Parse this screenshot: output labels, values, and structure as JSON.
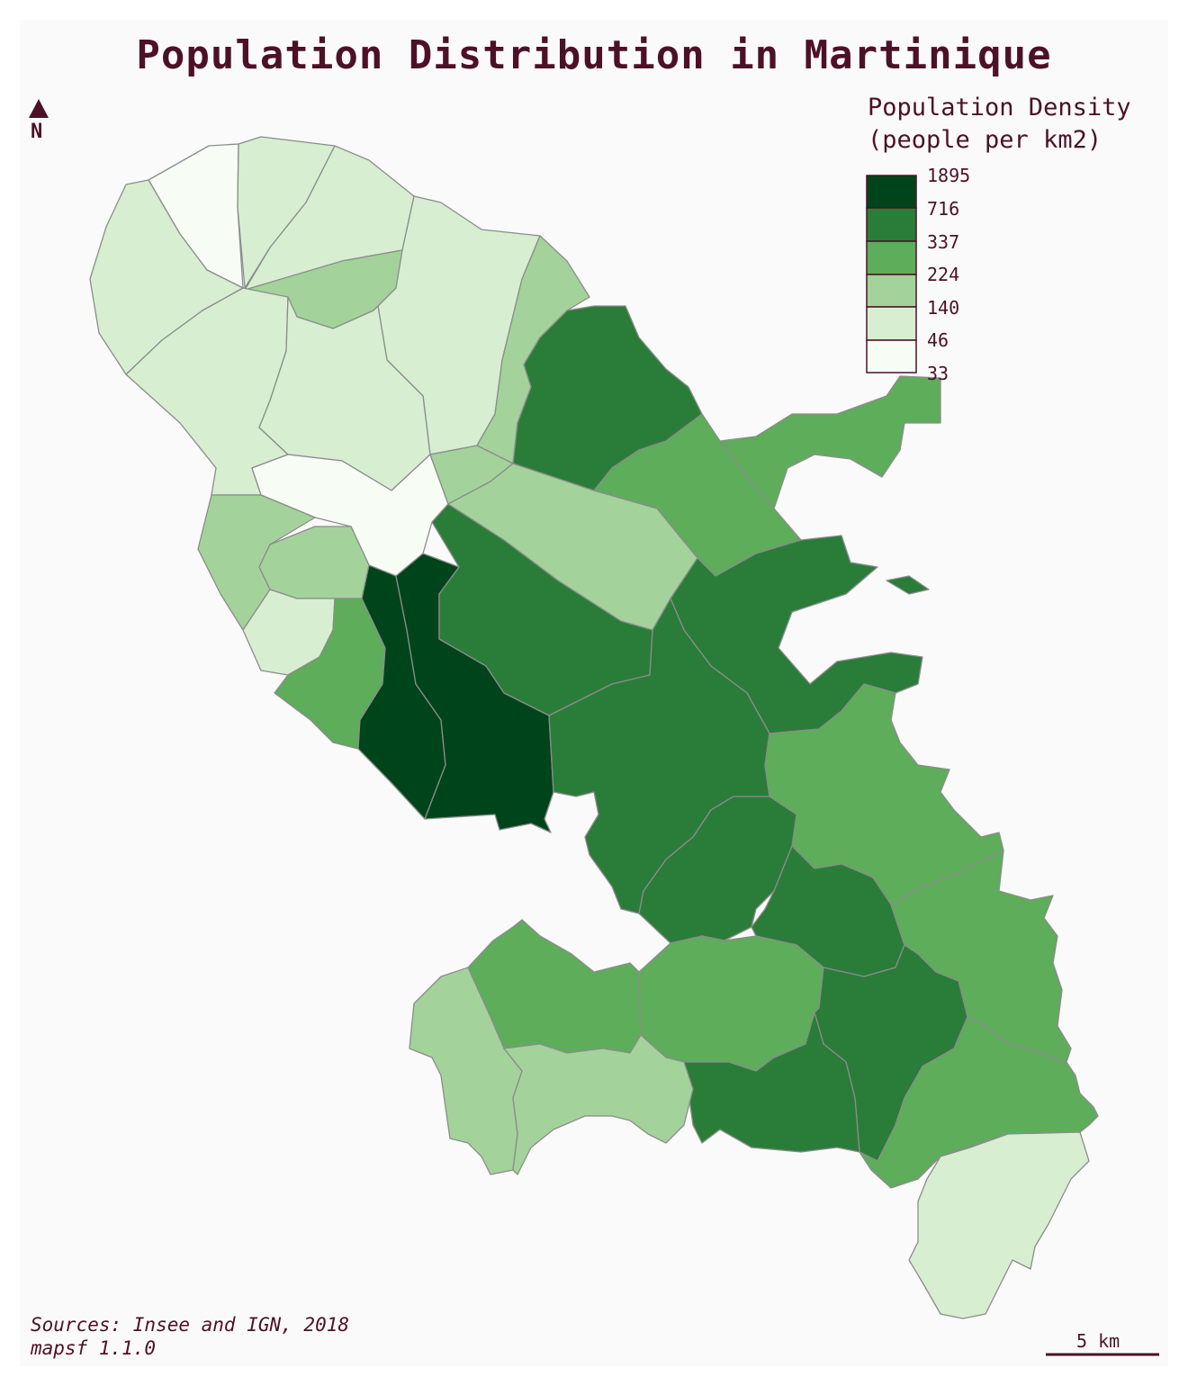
{
  "title": "Population Distribution in Martinique",
  "legend": {
    "title_line1": "Population Density",
    "title_line2": "(people per km2)",
    "breaks": [
      "1895",
      "716",
      "337",
      "224",
      "140",
      "46",
      "33"
    ],
    "colors": [
      "#00441b",
      "#2a7d39",
      "#5dad5a",
      "#a3d39a",
      "#d7eed1",
      "#f7fcf5"
    ]
  },
  "north_arrow": {
    "label": "N"
  },
  "credits": {
    "source": "Sources: Insee and IGN, 2018",
    "tool": "mapsf 1.1.0"
  },
  "scale_bar": {
    "label": "5 km"
  },
  "colors": {
    "text": "#4d1127",
    "background": "#fafafa",
    "border": "#8c8c8c"
  }
}
